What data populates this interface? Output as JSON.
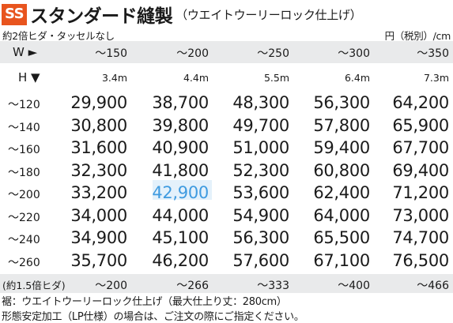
{
  "title": {
    "badge": "SS",
    "main": "スタンダード縫製",
    "sub": "（ウエイトウーリーロック仕上げ）"
  },
  "note_top": "約2倍ヒダ・タッセルなし",
  "unit": "円（税別）/cm",
  "w_label": "W ►",
  "h_label": "H ▼",
  "widths": [
    "～150",
    "～200",
    "～250",
    "～300",
    "～350"
  ],
  "fabric_lengths": [
    "3.4m",
    "4.4m",
    "5.5m",
    "6.4m",
    "7.3m"
  ],
  "rows": [
    {
      "height": "～120",
      "prices": [
        "29,900",
        "38,700",
        "48,300",
        "56,300",
        "64,200"
      ]
    },
    {
      "height": "～140",
      "prices": [
        "30,800",
        "39,800",
        "49,700",
        "57,800",
        "65,900"
      ]
    },
    {
      "height": "～160",
      "prices": [
        "31,600",
        "40,900",
        "51,000",
        "59,400",
        "67,700"
      ]
    },
    {
      "height": "～180",
      "prices": [
        "32,300",
        "41,800",
        "52,300",
        "60,800",
        "69,400"
      ]
    },
    {
      "height": "～200",
      "prices": [
        "33,200",
        "42,900",
        "53,600",
        "62,400",
        "71,200"
      ]
    },
    {
      "height": "～220",
      "prices": [
        "34,000",
        "44,000",
        "54,900",
        "64,000",
        "73,000"
      ]
    },
    {
      "height": "～240",
      "prices": [
        "34,900",
        "45,100",
        "56,300",
        "65,500",
        "74,700"
      ]
    },
    {
      "height": "～260",
      "prices": [
        "35,700",
        "46,200",
        "57,600",
        "67,100",
        "76,500"
      ]
    }
  ],
  "highlight": {
    "row": 4,
    "col": 1,
    "color": "#3f9be0"
  },
  "bottom_row": {
    "label": "(約1.5倍ヒダ)",
    "values": [
      "～200",
      "～266",
      "～333",
      "～400",
      "～466"
    ]
  },
  "footnotes": [
    "裾：ウエイトウーリーロック仕上げ（最大仕上り丈：280cm）",
    "形態安定加工（LP仕様）の場合は、ご注文の際にご指定ください。"
  ],
  "colors": {
    "badge": "#e8541e",
    "band": "#e9eaeb"
  }
}
